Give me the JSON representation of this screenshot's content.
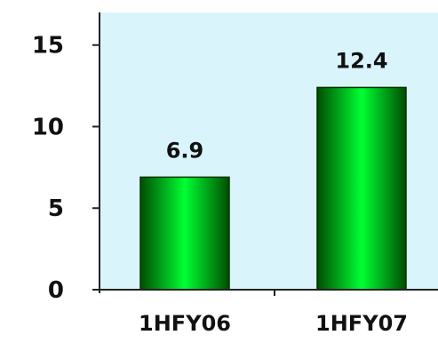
{
  "chart_data": {
    "type": "bar",
    "title": "",
    "xlabel": "",
    "ylabel": "",
    "categories": [
      "1HFY06",
      "1HFY07"
    ],
    "values": [
      6.9,
      12.4
    ],
    "data_labels": [
      "6.9",
      "12.4"
    ],
    "ylim": [
      0,
      17
    ],
    "yticks": [
      0,
      5,
      10,
      15
    ],
    "ytick_labels": [
      "0",
      "5",
      "10",
      "15"
    ],
    "grid": false,
    "legend": "none",
    "colors": {
      "plot_background": "#d9f5fb",
      "bar_center": "#00ff33",
      "bar_edge": "#004d00",
      "bar_outline": "#003300",
      "axis": "#222222"
    }
  }
}
